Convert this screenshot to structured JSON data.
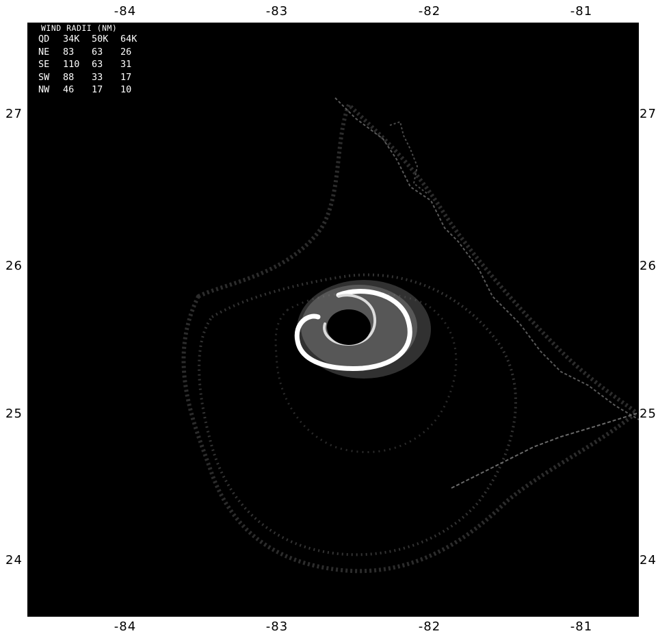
{
  "axes": {
    "top_ticks": [
      "-84",
      "-83",
      "-82",
      "-81"
    ],
    "bottom_ticks": [
      "-84",
      "-83",
      "-82",
      "-81"
    ],
    "left_ticks": [
      "27",
      "26",
      "25",
      "24"
    ],
    "right_ticks": [
      "27",
      "26",
      "25",
      "24"
    ]
  },
  "legend": {
    "title": "WIND RADII (NM)",
    "header": [
      "QD",
      "34K",
      "50K",
      "64K"
    ],
    "rows": [
      [
        "NE",
        "83",
        "63",
        "26"
      ],
      [
        "SE",
        "110",
        "63",
        "31"
      ],
      [
        "SW",
        "88",
        "33",
        "17"
      ],
      [
        "NW",
        "46",
        "17",
        "10"
      ]
    ]
  },
  "colors": {
    "background": "#000000",
    "contour": "#3a3a3a",
    "coast": "#6a6a6a",
    "eyewall": "#ffffff",
    "eyewall_shade": "#9a9a9a"
  }
}
